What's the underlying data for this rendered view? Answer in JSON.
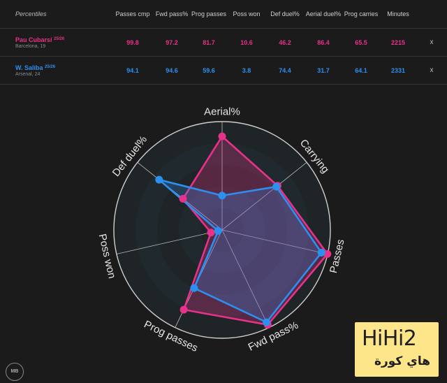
{
  "table": {
    "corner_label": "Percentiles",
    "columns": [
      "Passes cmp",
      "Fwd pass%",
      "Prog passes",
      "Poss won",
      "Def duel%",
      "Aerial duel%",
      "Prog carries",
      "Minutes"
    ],
    "remove_label": "x",
    "rows": [
      {
        "name": "Pau Cubarsí",
        "season": "25/26",
        "club": "Barcelona, 19",
        "values": [
          "99.8",
          "97.2",
          "81.7",
          "10.6",
          "46.2",
          "86.4",
          "65.5",
          "2215"
        ]
      },
      {
        "name": "W. Saliba",
        "season": "25/26",
        "club": "Arsenal, 24",
        "values": [
          "94.1",
          "94.6",
          "59.6",
          "3.8",
          "74.4",
          "31.7",
          "64.1",
          "2331"
        ]
      }
    ]
  },
  "colors": {
    "player1": "#e8318a",
    "player2": "#2d8ff0",
    "background": "#1b1b1b"
  },
  "chart_data": {
    "type": "radar",
    "axes": [
      "Aerial%",
      "Carrying",
      "Passes",
      "Fwd pass%",
      "Prog passes",
      "Poss won",
      "Def duel%"
    ],
    "range": [
      0,
      100
    ],
    "grid": true,
    "series": [
      {
        "name": "Pau Cubarsí",
        "values": [
          86.4,
          65.5,
          99.8,
          97.2,
          81.7,
          10.6,
          46.2
        ]
      },
      {
        "name": "W. Saliba",
        "values": [
          31.7,
          64.1,
          94.1,
          94.6,
          59.6,
          3.8,
          74.4
        ]
      }
    ]
  },
  "watermark": {
    "main": "HiHi2",
    "sub": "هاي كورة"
  },
  "logo": {
    "text": "MB"
  }
}
